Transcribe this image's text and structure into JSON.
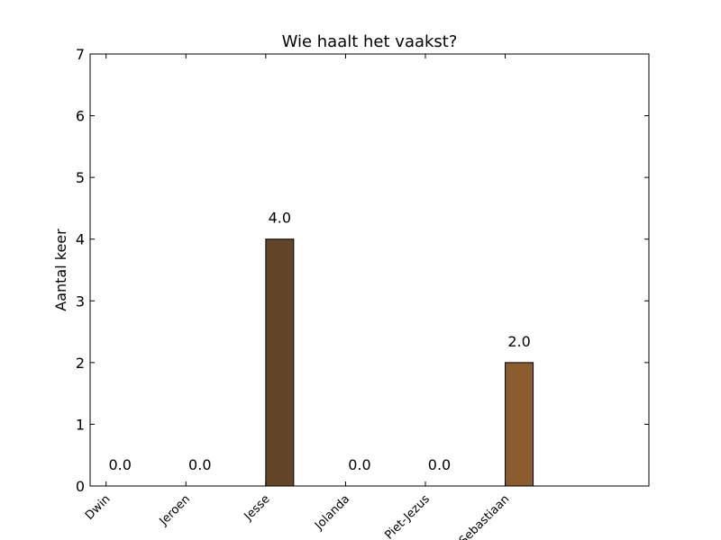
{
  "chart_data": {
    "type": "bar",
    "title": "Wie haalt het vaakst?",
    "ylabel": "Aantal keer",
    "xlabel": "",
    "categories": [
      "Dwin",
      "Jeroen",
      "Jesse",
      "Jolanda",
      "Piet-Jezus",
      "Sebastiaan"
    ],
    "values": [
      0,
      0,
      4,
      0,
      0,
      2
    ],
    "value_labels": [
      "0.0",
      "0.0",
      "4.0",
      "0.0",
      "0.0",
      "2.0"
    ],
    "bar_colors": [
      "#63462a",
      "#8a6035",
      "#63462a",
      "#8a6035",
      "#8a6035",
      "#8a5c2f"
    ],
    "ylim": [
      0,
      7
    ],
    "yticks": [
      0,
      1,
      2,
      3,
      4,
      5,
      6,
      7
    ],
    "grid": false,
    "xtick_rotation": 45
  }
}
